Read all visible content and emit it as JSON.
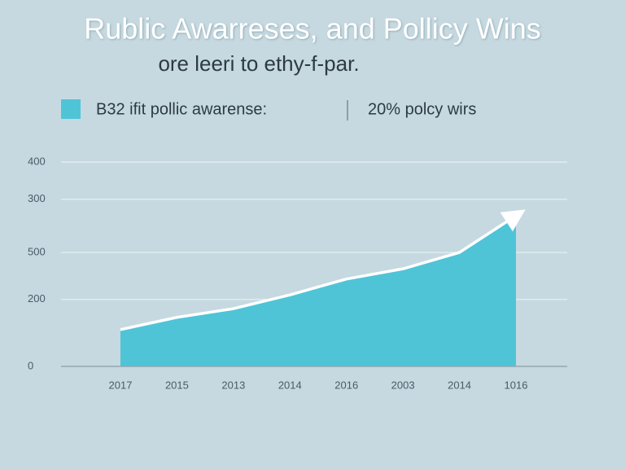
{
  "chart_data": {
    "type": "area",
    "title": "Rublic Awarreses, and Pollicy Wins",
    "subtitle": "ore leeri to ethy-f-par.",
    "annotation": "20% polcy wirs",
    "categories": [
      "2017",
      "2015",
      "2013",
      "2014",
      "2016",
      "2003",
      "2014",
      "1016"
    ],
    "series": [
      {
        "name": "B32 ifit pollic awarense:",
        "color": "#4fc4d7",
        "values": [
          72,
          96,
          113,
          140,
          171,
          191,
          223,
          295
        ]
      }
    ],
    "ylim": [
      0,
      400
    ],
    "yticks": [
      0,
      {
        "value": 131,
        "label": "200"
      },
      {
        "value": 223,
        "label": "500"
      },
      {
        "value": 327,
        "label": "300"
      },
      400
    ],
    "grid": true
  }
}
